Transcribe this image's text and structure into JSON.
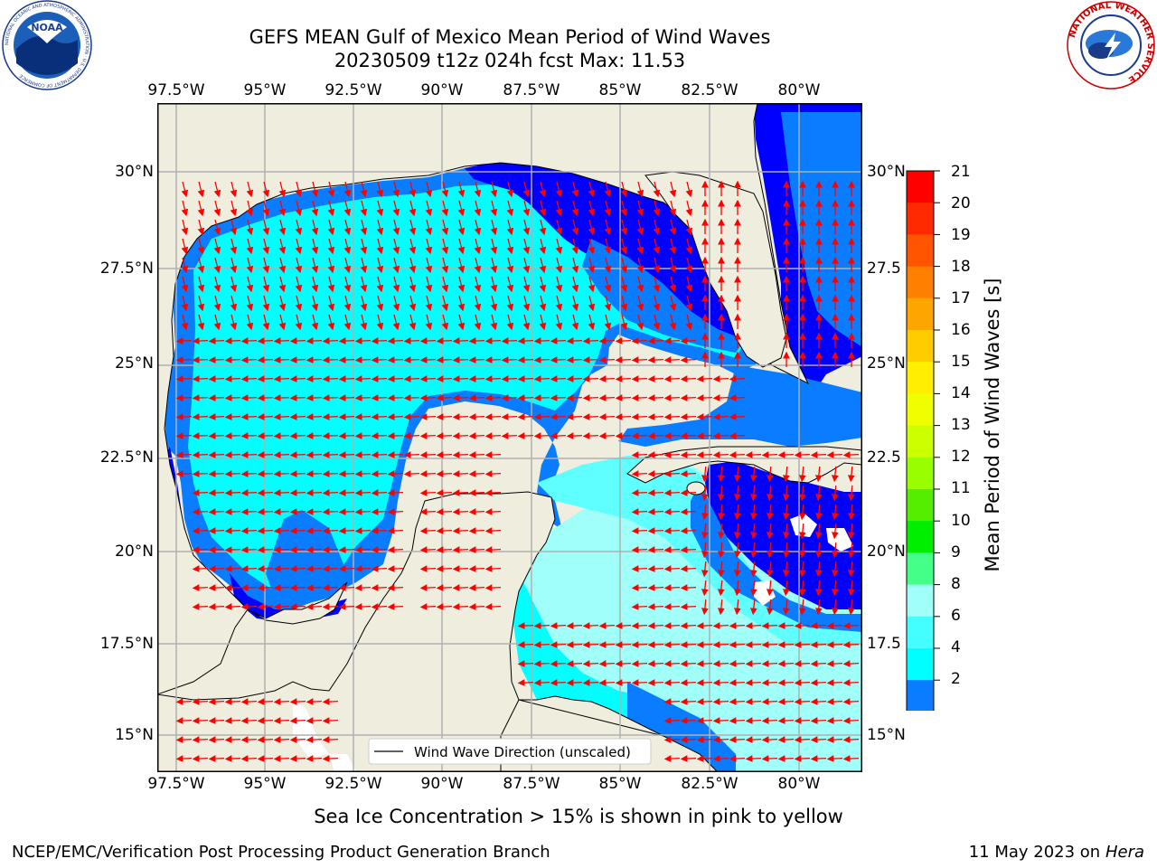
{
  "title": {
    "line1": "GEFS MEAN Gulf of Mexico Mean Period of Wind Waves",
    "line2": "20230509 t12z 024h fcst   Max: 11.53"
  },
  "map": {
    "lon_labels": [
      "97.5°W",
      "95°W",
      "92.5°W",
      "90°W",
      "87.5°W",
      "85°W",
      "82.5°W",
      "80°W"
    ],
    "lat_labels_left": [
      "30°N",
      "27.5°N",
      "25°N",
      "22.5°N",
      "20°N",
      "17.5°N",
      "15°N"
    ],
    "lat_labels_right": [
      "30°N",
      "27.5",
      "25°N",
      "22.5",
      "20°N",
      "17.5",
      "15°N"
    ],
    "legend": "Wind Wave Direction (unscaled)",
    "colors": {
      "land": "#efedde",
      "ocean_2_4": "#0000ff",
      "ocean_4_6": "#0a7cff",
      "ocean_6_8": "#00ffff",
      "ocean_8_9": "#60ffff",
      "ocean_9_10": "#a0fff8",
      "arrow": "#ff0000",
      "grid": "#b0b0b0"
    }
  },
  "colorbar": {
    "label": "Mean Period of Wind Waves [s]",
    "ticks": [
      "21",
      "20",
      "19",
      "18",
      "17",
      "16",
      "15",
      "14",
      "13",
      "12",
      "11",
      "10",
      "9",
      "8",
      "6",
      "4",
      "2"
    ],
    "colors": [
      "#ff0000",
      "#ff2a00",
      "#ff5500",
      "#ff8000",
      "#ffa500",
      "#ffcc00",
      "#ffee00",
      "#f0ff00",
      "#ccff00",
      "#99ff00",
      "#55ee00",
      "#00ee00",
      "#44ff88",
      "#a0fff8",
      "#44ffff",
      "#00ffff",
      "#0a7cff",
      "#0000ff"
    ]
  },
  "footer": {
    "ice_note": "Sea Ice Concentration > 15% is shown in pink to yellow",
    "org": "NCEP/EMC/Verification Post Processing Product Generation Branch",
    "date": "11 May 2023 on",
    "host": "Hera"
  },
  "logos": {
    "noaa_ring": "NATIONAL OCEANIC AND ATMOSPHERIC ADMINISTRATION · U.S. DEPARTMENT OF COMMERCE",
    "noaa_word": "NOAA",
    "nws_ring": "NATIONAL WEATHER SERVICE"
  }
}
